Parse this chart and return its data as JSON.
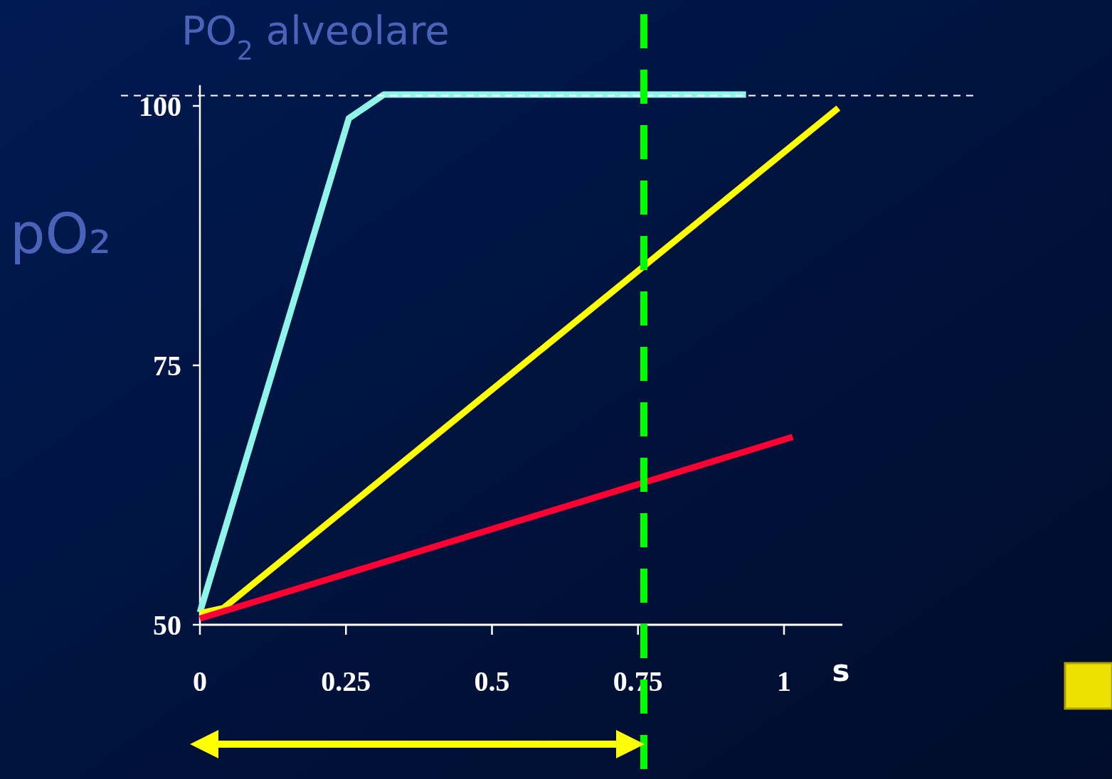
{
  "chart_data": {
    "type": "line",
    "xlabel": "s",
    "ylabel": "pO₂",
    "xlim": [
      0,
      1.1
    ],
    "ylim": [
      50,
      102
    ],
    "xticks": [
      0,
      0.25,
      0.5,
      0.75,
      1
    ],
    "yticks": [
      50,
      75,
      100
    ],
    "grid": false,
    "marker": "none",
    "line_style": "solid",
    "series": [
      {
        "color": "#8ef5e8",
        "x": [
          0,
          0.255,
          0.315,
          0.935
        ],
        "values": [
          51.2,
          98.8,
          101.1,
          101.1
        ]
      },
      {
        "color": "#ffff00",
        "x": [
          0,
          0.04,
          1.093
        ],
        "values": [
          51.1,
          51.6,
          99.8
        ]
      },
      {
        "color": "#ff0033",
        "x": [
          0,
          1.015
        ],
        "values": [
          50.6,
          68.1
        ]
      }
    ],
    "ref_lines": [
      {
        "axis": "y",
        "value": 101,
        "label": "PO$_{2}$ alveolare",
        "color": "#ffffff",
        "line_style": "dashed"
      },
      {
        "axis": "x",
        "value": 0.76,
        "color": "#00ff00",
        "line_style": "dashed"
      }
    ]
  }
}
